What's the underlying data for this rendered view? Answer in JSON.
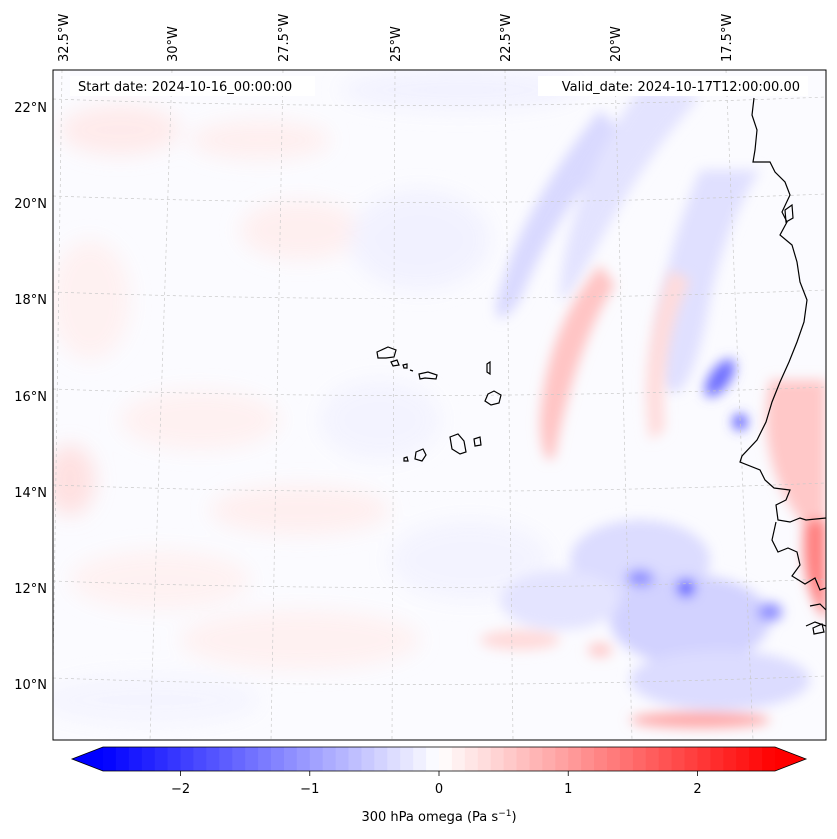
{
  "map": {
    "start_date": "Start date: 2024-10-16_00:00:00",
    "valid_date": "Valid_date: 2024-10-17T12:00:00.00",
    "lon_labels": [
      "32.5°W",
      "30°W",
      "27.5°W",
      "25°W",
      "22.5°W",
      "20°W",
      "17.5°W"
    ],
    "lat_labels": [
      "22°N",
      "20°N",
      "18°N",
      "16°N",
      "14°N",
      "12°N",
      "10°N"
    ],
    "field": "300 hPa omega",
    "field_units": "Pa s",
    "field_units_exp": "−1",
    "lon_range": [
      -33.0,
      -16.0
    ],
    "lat_range": [
      9.0,
      22.8
    ]
  },
  "colorbar": {
    "ticks": [
      "−2",
      "−1",
      "0",
      "1",
      "2"
    ],
    "tick_values": [
      -2,
      -1,
      0,
      1,
      2
    ],
    "range": [
      -2.6,
      2.6
    ],
    "extend": "both",
    "colors": {
      "min": "#0000ff",
      "mid": "#ffffff",
      "max": "#ff0000"
    }
  },
  "features": [
    "cape-verde-islands",
    "west-african-coastline"
  ]
}
